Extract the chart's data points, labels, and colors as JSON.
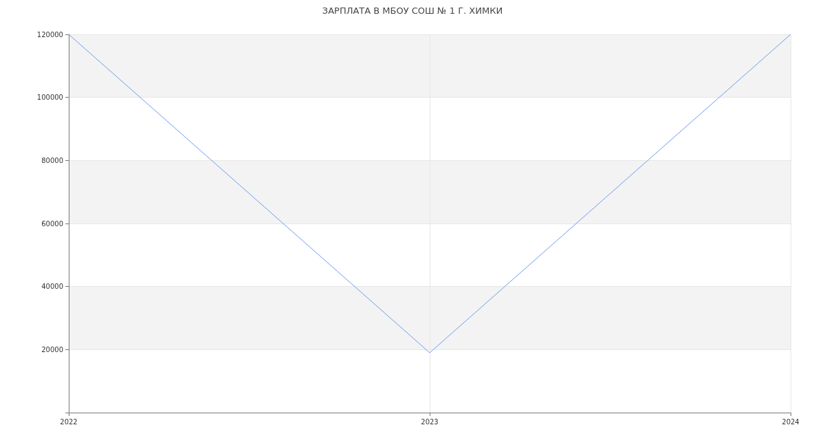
{
  "chart_data": {
    "type": "line",
    "title": "ЗАРПЛАТА В МБОУ СОШ № 1 Г. ХИМКИ",
    "x": [
      2022,
      2023,
      2024
    ],
    "series": [
      {
        "color": "#6d9bf1",
        "values": [
          120000,
          19000,
          120000
        ]
      }
    ],
    "xlim": [
      2022,
      2024
    ],
    "xticks": [
      2022,
      2023,
      2024
    ],
    "ylim": [
      0,
      120000
    ],
    "yticks": [
      {
        "value": 0,
        "label": null
      },
      20000,
      40000,
      60000,
      80000,
      100000,
      120000
    ],
    "grid": true,
    "marker": "none",
    "line_style": "solid"
  }
}
